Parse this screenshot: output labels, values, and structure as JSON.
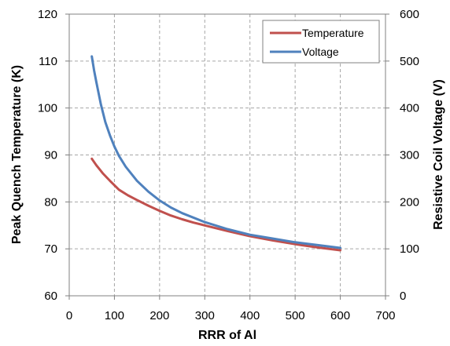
{
  "chart_data": {
    "type": "line",
    "title": "",
    "xlabel": "RRR of Al",
    "ylabel_left": "Peak Quench Temperature (K)",
    "ylabel_right": "Resistive Coil Voltage (V)",
    "xlim": [
      0,
      700
    ],
    "ylim_left": [
      60,
      120
    ],
    "ylim_right": [
      0,
      600
    ],
    "x_ticks": [
      "0",
      "100",
      "200",
      "300",
      "400",
      "500",
      "600",
      "700"
    ],
    "y_left_ticks": [
      "60",
      "70",
      "80",
      "90",
      "100",
      "110",
      "120"
    ],
    "y_right_ticks": [
      "0",
      "100",
      "200",
      "300",
      "400",
      "500",
      "600"
    ],
    "grid": true,
    "legend_position": "top-right",
    "series": [
      {
        "name": "Temperature",
        "axis": "left",
        "color": "#c0504d",
        "x": [
          50,
          60,
          75,
          90,
          110,
          130,
          150,
          175,
          200,
          225,
          250,
          275,
          300,
          350,
          400,
          450,
          500,
          550,
          600
        ],
        "y": [
          89.2,
          87.8,
          86.0,
          84.5,
          82.6,
          81.4,
          80.4,
          79.2,
          78.1,
          77.1,
          76.3,
          75.6,
          75.0,
          73.8,
          72.7,
          71.8,
          71.0,
          70.3,
          69.7
        ]
      },
      {
        "name": "Voltage",
        "axis": "right",
        "color": "#4f81bd",
        "x": [
          50,
          55,
          60,
          70,
          80,
          90,
          100,
          110,
          125,
          150,
          175,
          200,
          225,
          250,
          300,
          350,
          400,
          450,
          500,
          550,
          600
        ],
        "y": [
          510,
          480,
          455,
          408,
          370,
          342,
          318,
          298,
          275,
          245,
          222,
          203,
          188,
          176,
          157,
          142,
          130,
          122,
          114,
          108,
          102
        ]
      }
    ]
  }
}
